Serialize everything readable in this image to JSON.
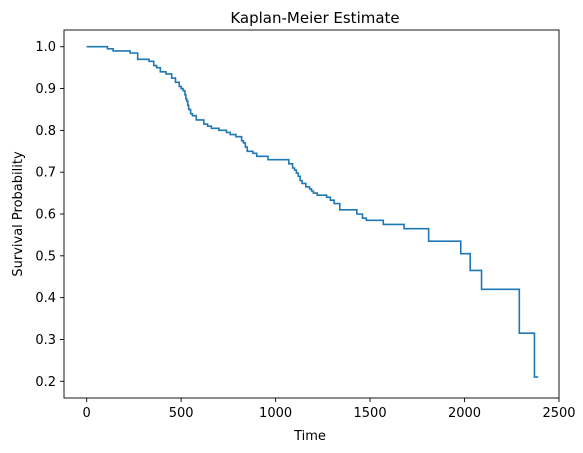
{
  "chart_data": {
    "type": "line",
    "title": "Kaplan-Meier Estimate",
    "xlabel": "Time",
    "ylabel": "Survival Probability",
    "xlim": [
      -120,
      2500
    ],
    "ylim": [
      0.16,
      1.04
    ],
    "xticks": [
      0,
      500,
      1000,
      1500,
      2000,
      2500
    ],
    "yticks": [
      0.2,
      0.3,
      0.4,
      0.5,
      0.6,
      0.7,
      0.8,
      0.9,
      1.0
    ],
    "xtick_labels": [
      "0",
      "500",
      "1000",
      "1500",
      "2000",
      "2500"
    ],
    "ytick_labels": [
      "0.2",
      "0.3",
      "0.4",
      "0.5",
      "0.6",
      "0.7",
      "0.8",
      "0.9",
      "1.0"
    ],
    "grid": false,
    "legend": "none",
    "color": "#1f77b4",
    "series": [
      {
        "style": "step-post",
        "x": [
          0,
          110,
          140,
          230,
          270,
          330,
          355,
          370,
          390,
          420,
          450,
          470,
          490,
          500,
          510,
          520,
          525,
          530,
          535,
          540,
          550,
          560,
          580,
          620,
          640,
          660,
          700,
          740,
          760,
          790,
          820,
          830,
          840,
          850,
          880,
          900,
          960,
          1000,
          1070,
          1090,
          1100,
          1110,
          1120,
          1130,
          1140,
          1160,
          1180,
          1190,
          1200,
          1220,
          1270,
          1290,
          1310,
          1340,
          1360,
          1430,
          1460,
          1480,
          1520,
          1570,
          1600,
          1680,
          1810,
          1980,
          2030,
          2090,
          2290,
          2370,
          2390
        ],
        "y": [
          1.0,
          0.995,
          0.99,
          0.985,
          0.97,
          0.965,
          0.955,
          0.95,
          0.94,
          0.935,
          0.925,
          0.915,
          0.905,
          0.9,
          0.895,
          0.885,
          0.875,
          0.87,
          0.86,
          0.85,
          0.84,
          0.835,
          0.825,
          0.815,
          0.81,
          0.805,
          0.8,
          0.795,
          0.79,
          0.785,
          0.775,
          0.77,
          0.76,
          0.75,
          0.745,
          0.738,
          0.73,
          0.73,
          0.72,
          0.71,
          0.705,
          0.698,
          0.69,
          0.68,
          0.673,
          0.665,
          0.66,
          0.655,
          0.65,
          0.645,
          0.64,
          0.633,
          0.625,
          0.61,
          0.61,
          0.6,
          0.59,
          0.585,
          0.585,
          0.575,
          0.575,
          0.565,
          0.535,
          0.505,
          0.465,
          0.42,
          0.315,
          0.21,
          0.21
        ]
      }
    ]
  }
}
